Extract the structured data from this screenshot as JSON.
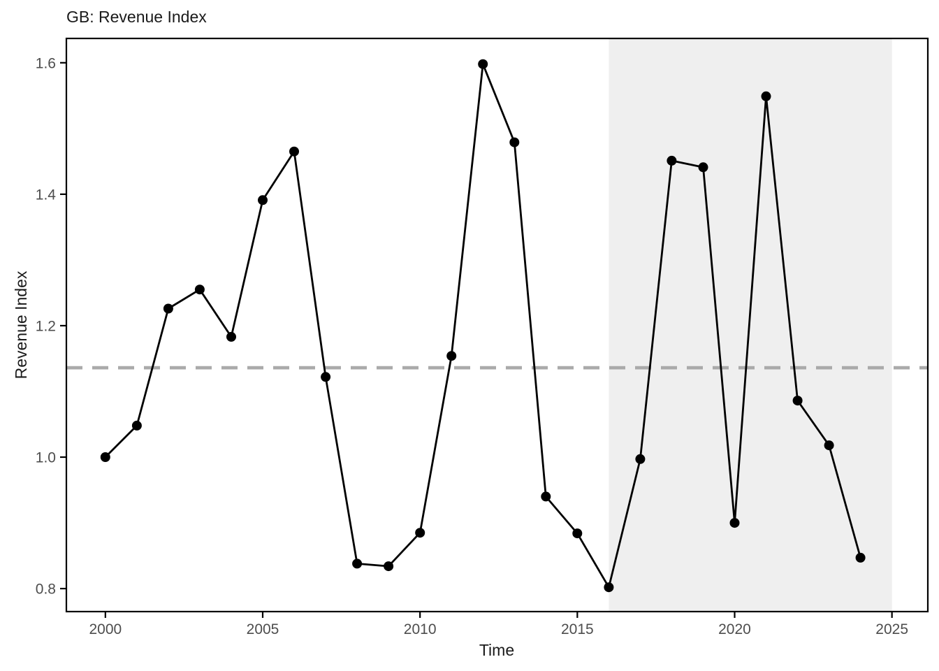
{
  "page": {
    "background_color": "#ffffff"
  },
  "chart_data": {
    "type": "line",
    "title": "GB: Revenue Index",
    "xlabel": "Time",
    "ylabel": "Revenue Index",
    "x": [
      2000,
      2001,
      2002,
      2003,
      2004,
      2005,
      2006,
      2007,
      2008,
      2009,
      2010,
      2011,
      2012,
      2013,
      2014,
      2015,
      2016,
      2017,
      2018,
      2019,
      2020,
      2021,
      2022,
      2023,
      2024
    ],
    "values": [
      1.0,
      1.048,
      1.226,
      1.255,
      1.183,
      1.391,
      1.465,
      1.122,
      0.838,
      0.834,
      0.885,
      1.154,
      1.598,
      1.479,
      0.94,
      0.884,
      0.802,
      0.997,
      1.451,
      1.441,
      0.9,
      1.549,
      1.086,
      1.018,
      0.847
    ],
    "x_ticks": [
      "2000",
      "2005",
      "2010",
      "2015",
      "2020",
      "2025"
    ],
    "x_tick_values": [
      2000,
      2005,
      2010,
      2015,
      2020,
      2025
    ],
    "y_ticks": [
      "1.6",
      "1.4",
      "1.2",
      "1.0",
      "0.8"
    ],
    "y_tick_values": [
      1.6,
      1.4,
      1.2,
      1.0,
      0.8
    ],
    "xlim": [
      1998.76,
      2026.14
    ],
    "ylim": [
      0.765,
      1.637
    ],
    "grid": false,
    "legend": false,
    "line_color": "#000000",
    "point_color": "#000000",
    "reference_line": {
      "value": 1.136,
      "style": "dashed",
      "color": "#aaaaaa"
    },
    "shaded_region": {
      "x_start": 2016,
      "x_end": 2025,
      "color": "#efefef"
    },
    "axis_text_color": "#4d4d4d",
    "axis_line_color": "#000000"
  }
}
